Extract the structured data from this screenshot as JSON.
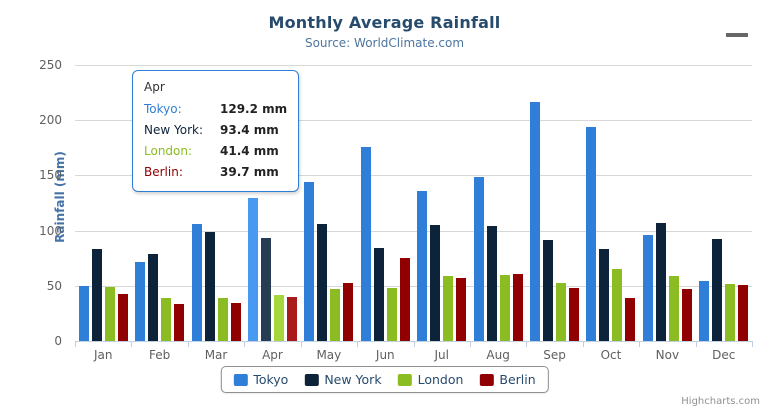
{
  "chart": {
    "title": "Monthly Average Rainfall",
    "subtitle": "Source: WorldClimate.com",
    "credits": "Highcharts.com"
  },
  "icons": {
    "menu": "hamburger-menu-icon"
  },
  "chart_data": {
    "type": "bar",
    "title": "Monthly Average Rainfall",
    "subtitle": "Source: WorldClimate.com",
    "categories": [
      "Jan",
      "Feb",
      "Mar",
      "Apr",
      "May",
      "Jun",
      "Jul",
      "Aug",
      "Sep",
      "Oct",
      "Nov",
      "Dec"
    ],
    "series": [
      {
        "name": "Tokyo",
        "color": "#2f7ed8",
        "hover_color": "#4998f2",
        "values": [
          49.9,
          71.5,
          106.4,
          129.2,
          144.0,
          176.0,
          135.6,
          148.5,
          216.4,
          194.1,
          95.6,
          54.4
        ]
      },
      {
        "name": "New York",
        "color": "#0d233a",
        "hover_color": "#273d54",
        "values": [
          83.6,
          78.8,
          98.5,
          93.4,
          106.0,
          84.5,
          105.0,
          104.3,
          91.2,
          83.5,
          106.6,
          92.3
        ]
      },
      {
        "name": "London",
        "color": "#8bbc21",
        "hover_color": "#a5d63b",
        "values": [
          48.9,
          38.8,
          39.3,
          41.4,
          47.0,
          48.3,
          59.0,
          59.6,
          52.4,
          65.2,
          59.3,
          51.2
        ]
      },
      {
        "name": "Berlin",
        "color": "#910000",
        "hover_color": "#ab1a1a",
        "values": [
          42.4,
          33.2,
          34.5,
          39.7,
          52.6,
          75.5,
          57.4,
          60.4,
          47.6,
          39.1,
          46.8,
          51.1
        ]
      }
    ],
    "xlabel": "",
    "ylabel": "Rainfall (mm)",
    "ylim": [
      0,
      250
    ],
    "yticks": [
      0,
      50,
      100,
      150,
      200,
      250
    ],
    "grid": true,
    "legend_position": "bottom",
    "hovered_category": "Apr"
  },
  "tooltip": {
    "header": "Apr",
    "rows": [
      {
        "label": "Tokyo:",
        "value": "129.2 mm",
        "color": "#2f7ed8"
      },
      {
        "label": "New York:",
        "value": "93.4 mm",
        "color": "#0d233a"
      },
      {
        "label": "London:",
        "value": "41.4 mm",
        "color": "#8bbc21"
      },
      {
        "label": "Berlin:",
        "value": "39.7 mm",
        "color": "#910000"
      }
    ]
  }
}
